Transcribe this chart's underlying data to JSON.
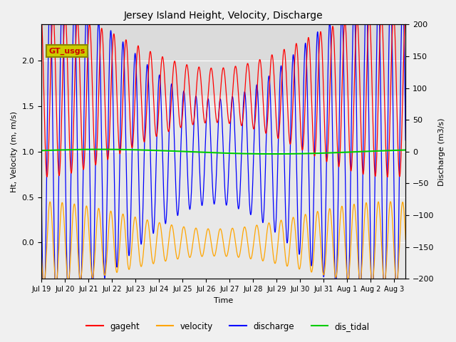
{
  "title": "Jersey Island Height, Velocity, Discharge",
  "xlabel": "Time",
  "ylabel_left": "Ht, Velocity (m, m/s)",
  "ylabel_right": "Discharge (m3/s)",
  "ylim_left": [
    -0.4,
    2.4
  ],
  "ylim_right": [
    -200,
    200
  ],
  "background_color": "#f0f0f0",
  "plot_bg_color": "#e8e8e8",
  "legend_colors": [
    "#ff0000",
    "#ffa500",
    "#0000ff",
    "#00cc00"
  ],
  "legend_entries": [
    "gageht",
    "velocity",
    "discharge",
    "dis_tidal"
  ],
  "gt_usgs_box_color": "#cccc00",
  "gt_usgs_text_color": "#cc0000",
  "tidal_period_hours": 12.42,
  "gageht_mean": 1.62,
  "gageht_base_amp": 0.6,
  "velocity_base_amp": 0.3,
  "discharge_base_amp": 165,
  "dis_tidal_value": 1.0,
  "neap_spring_period_days": 14.77,
  "tick_labels": [
    "Jul 19",
    "Jul 20",
    "Jul 21",
    "Jul 22",
    "Jul 23",
    "Jul 24",
    "Jul 25",
    "Jul 26",
    "Jul 27",
    "Jul 28",
    "Jul 29",
    "Jul 30",
    "Jul 31",
    "Aug 1",
    "Aug 2",
    "Aug 3"
  ]
}
